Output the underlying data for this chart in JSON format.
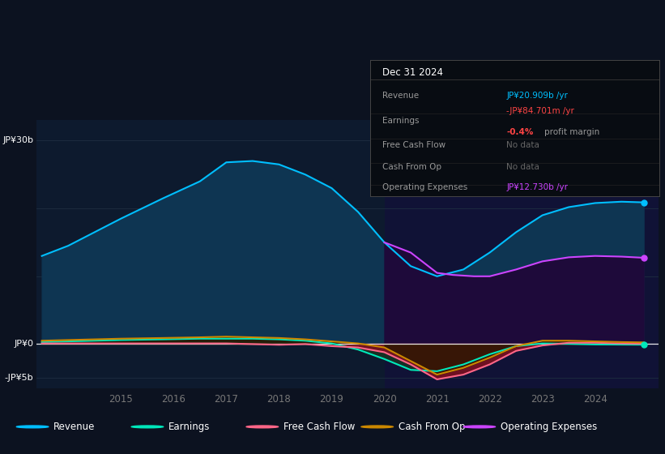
{
  "bg_color": "#0c1220",
  "chart_bg": "#0d1a2e",
  "ylim": [
    -6.5,
    33
  ],
  "xlim_start": 2013.4,
  "xlim_end": 2025.2,
  "years": [
    2013.5,
    2014.0,
    2014.5,
    2015.0,
    2015.8,
    2016.5,
    2017.0,
    2017.5,
    2018.0,
    2018.5,
    2019.0,
    2019.5,
    2020.0,
    2020.5,
    2021.0,
    2021.5,
    2022.0,
    2022.5,
    2023.0,
    2023.5,
    2024.0,
    2024.5,
    2024.92
  ],
  "revenue": [
    13.0,
    14.5,
    16.5,
    18.5,
    21.5,
    24.0,
    26.8,
    27.0,
    26.5,
    25.0,
    23.0,
    19.5,
    15.0,
    11.5,
    10.0,
    11.0,
    13.5,
    16.5,
    19.0,
    20.2,
    20.8,
    21.0,
    20.9
  ],
  "op_expenses_x": [
    2020.0,
    2020.5,
    2021.0,
    2021.3,
    2021.7,
    2022.0,
    2022.5,
    2023.0,
    2023.5,
    2024.0,
    2024.5,
    2024.92
  ],
  "op_expenses_y": [
    15.0,
    13.5,
    10.5,
    10.2,
    10.0,
    10.0,
    11.0,
    12.2,
    12.8,
    13.0,
    12.9,
    12.73
  ],
  "earnings": [
    0.3,
    0.4,
    0.5,
    0.6,
    0.7,
    0.8,
    0.8,
    0.8,
    0.7,
    0.5,
    0.1,
    -0.8,
    -2.2,
    -3.8,
    -4.0,
    -3.0,
    -1.5,
    -0.3,
    0.1,
    0.05,
    -0.05,
    -0.07,
    -0.08
  ],
  "free_cash_flow": [
    0.1,
    0.1,
    0.1,
    0.1,
    0.1,
    0.1,
    0.1,
    0.0,
    -0.1,
    0.0,
    -0.3,
    -0.5,
    -1.2,
    -3.0,
    -5.2,
    -4.5,
    -3.0,
    -1.0,
    -0.2,
    0.2,
    0.2,
    0.1,
    0.05
  ],
  "cash_from_op": [
    0.5,
    0.6,
    0.7,
    0.8,
    0.9,
    1.0,
    1.1,
    1.0,
    0.9,
    0.7,
    0.4,
    0.1,
    -0.5,
    -2.5,
    -4.5,
    -3.5,
    -2.0,
    -0.3,
    0.5,
    0.5,
    0.4,
    0.3,
    0.25
  ],
  "revenue_color": "#00bfff",
  "revenue_fill": "#0e3552",
  "op_color": "#cc44ff",
  "op_fill": "#1e0a3a",
  "earnings_color": "#00e8bb",
  "fcf_color": "#ff6688",
  "fcf_fill_neg": "#7a1020",
  "cashop_color": "#cc8800",
  "cashop_fill_pos": "#2a1800",
  "cashop_fill_neg": "#2a1800",
  "highlight_bg": "#12103a",
  "highlight_start": 2020.0,
  "grid_color": "#1e2e40",
  "zero_line_color": "#ffffff",
  "ytick_labels": [
    "JP¥30b",
    "JP¥0",
    "-JP¥5b"
  ],
  "ytick_values": [
    30,
    0,
    -5
  ],
  "xticks": [
    2015,
    2016,
    2017,
    2018,
    2019,
    2020,
    2021,
    2022,
    2023,
    2024
  ],
  "legend_items": [
    "Revenue",
    "Earnings",
    "Free Cash Flow",
    "Cash From Op",
    "Operating Expenses"
  ],
  "legend_colors": [
    "#00bfff",
    "#00e8bb",
    "#ff6688",
    "#cc8800",
    "#cc44ff"
  ],
  "infobox_rows": [
    {
      "label": "Revenue",
      "value": "JP¥20.909b /yr",
      "color": "#00bfff",
      "sub": null
    },
    {
      "label": "Earnings",
      "value": "-JP¥84.701m /yr",
      "color": "#ff4444",
      "sub": [
        "-0.4%",
        "profit margin"
      ]
    },
    {
      "label": "Free Cash Flow",
      "value": "No data",
      "color": "#666666",
      "sub": null
    },
    {
      "label": "Cash From Op",
      "value": "No data",
      "color": "#666666",
      "sub": null
    },
    {
      "label": "Operating Expenses",
      "value": "JP¥12.730b /yr",
      "color": "#cc44ff",
      "sub": null
    }
  ]
}
